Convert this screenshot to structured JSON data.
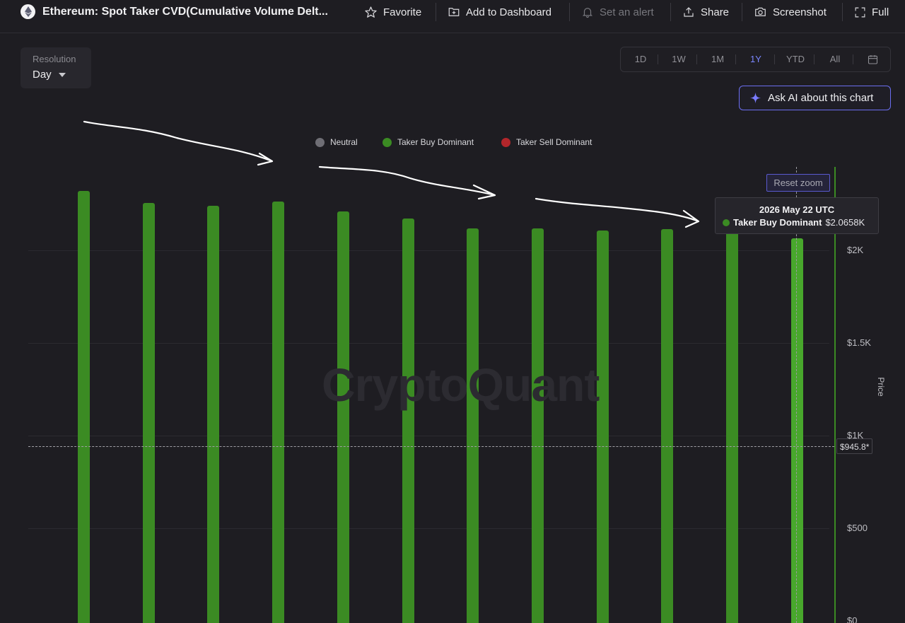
{
  "window": {
    "title": "Ethereum: Spot Taker CVD(Cumulative Volume Delt...",
    "logo_icon": "ethereum-icon"
  },
  "toolbar": {
    "favorite": "Favorite",
    "add_dashboard": "Add to Dashboard",
    "set_alert": "Set an alert",
    "share": "Share",
    "screenshot": "Screenshot",
    "full": "Full"
  },
  "resolution": {
    "label": "Resolution",
    "value": "Day"
  },
  "ranges": [
    "1D",
    "1W",
    "1M",
    "1Y",
    "YTD",
    "All"
  ],
  "active_range": "1Y",
  "ask_ai": {
    "label": "Ask AI about this chart"
  },
  "watermark": "CryptoQuant",
  "reset_zoom": "Reset zoom",
  "tooltip": {
    "date": "2026 May 22 UTC",
    "series": "Taker Buy Dominant",
    "value": "$2.0658K"
  },
  "crosshair_price_label": "$945.8*",
  "colors": {
    "neutral": "#6f6e75",
    "taker_buy": "#3b8b23",
    "taker_sell": "#b3262b",
    "accent": "#6b6ef0",
    "background": "#1e1d22"
  },
  "chart_data": {
    "type": "bar",
    "legend": [
      {
        "name": "Neutral",
        "color": "#6f6e75"
      },
      {
        "name": "Taker Buy Dominant",
        "color": "#3b8b23"
      },
      {
        "name": "Taker Sell Dominant",
        "color": "#b3262b"
      }
    ],
    "legend_position": "top-center",
    "y_title": "Price",
    "y_ticks": [
      {
        "value": 0,
        "label": "$0"
      },
      {
        "value": 500,
        "label": "$500"
      },
      {
        "value": 1000,
        "label": "$1K"
      },
      {
        "value": 1500,
        "label": "$1.5K"
      },
      {
        "value": 2000,
        "label": "$2K"
      }
    ],
    "ylim": [
      0,
      2450
    ],
    "grid": true,
    "series": [
      {
        "name": "Taker Buy Dominant",
        "values": [
          2320,
          2255,
          2240,
          2265,
          2210,
          2170,
          2120,
          2120,
          2105,
          2115,
          2130,
          2066
        ]
      }
    ],
    "highlighted_index": 11
  }
}
